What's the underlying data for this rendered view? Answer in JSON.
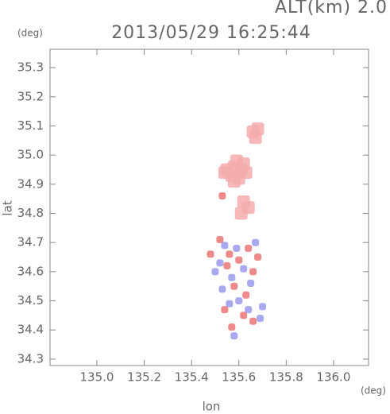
{
  "chart_data": {
    "type": "scatter",
    "title": "2013/05/29 16:25:44",
    "subtitle": "ALT(km) 2.0",
    "x_label": "lon",
    "y_label": "lat",
    "x_unit": "(deg)",
    "y_unit": "(deg)",
    "xlim": [
      134.802,
      136.148
    ],
    "ylim": [
      34.278,
      35.363
    ],
    "xticks": [
      {
        "value": 135,
        "label": "135.0"
      },
      135.2,
      135.4,
      135.6,
      135.8,
      {
        "value": 136,
        "label": "136.0"
      }
    ],
    "yticks": [
      34.3,
      34.4,
      34.5,
      34.6,
      34.7,
      34.8,
      34.9,
      {
        "value": 35,
        "label": "35.0"
      },
      35.1,
      35.2,
      35.3
    ],
    "series": [
      {
        "color": "#f5abab",
        "x": [
          135.55,
          135.58,
          135.61,
          135.57,
          135.6,
          135.59,
          135.54,
          135.62,
          135.58,
          135.63,
          135.66,
          135.68,
          135.67,
          135.62,
          135.64,
          135.61
        ],
        "y": [
          34.95,
          34.96,
          34.95,
          34.93,
          34.92,
          34.98,
          34.94,
          34.97,
          34.91,
          34.94,
          35.08,
          35.09,
          35.06,
          34.84,
          34.82,
          34.8
        ]
      },
      {
        "color": "#ec7676",
        "x": [
          135.52,
          135.56,
          135.6,
          135.64,
          135.55,
          135.66,
          135.58,
          135.62,
          135.66,
          135.57,
          135.54,
          135.68,
          135.48,
          135.53,
          135.63
        ],
        "y": [
          34.71,
          34.66,
          34.64,
          34.68,
          34.62,
          34.6,
          34.55,
          34.45,
          34.43,
          34.41,
          34.47,
          34.65,
          34.66,
          34.86,
          34.52
        ]
      },
      {
        "color": "#9a9aec",
        "x": [
          135.54,
          135.59,
          135.62,
          135.57,
          135.52,
          135.65,
          135.6,
          135.56,
          135.69,
          135.64,
          135.58,
          135.53,
          135.67,
          135.7,
          135.5
        ],
        "y": [
          34.69,
          34.68,
          34.61,
          34.58,
          34.63,
          34.56,
          34.5,
          34.49,
          34.44,
          34.47,
          34.38,
          34.54,
          34.7,
          34.48,
          34.6
        ]
      }
    ]
  }
}
